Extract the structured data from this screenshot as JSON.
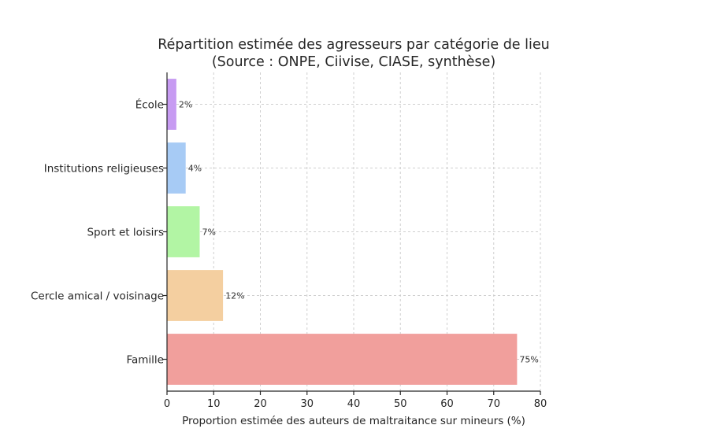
{
  "chart_data": {
    "type": "bar",
    "orientation": "horizontal",
    "title": "Répartition estimée des agresseurs par catégorie de lieu",
    "subtitle": "(Source : ONPE, Ciivise, CIASE, synthèse)",
    "xlabel": "Proportion estimée des auteurs de maltraitance sur mineurs (%)",
    "ylabel": "",
    "xlim": [
      0,
      80
    ],
    "xticks": [
      0,
      10,
      20,
      30,
      40,
      50,
      60,
      70,
      80
    ],
    "grid": true,
    "categories": [
      "École",
      "Institutions religieuses",
      "Sport et loisirs",
      "Cercle amical / voisinage",
      "Famille"
    ],
    "values": [
      2,
      4,
      7,
      12,
      75
    ],
    "data_labels": [
      "2%",
      "4%",
      "7%",
      "12%",
      "75%"
    ],
    "colors": [
      "#c79bf2",
      "#a7cbf5",
      "#b2f5a4",
      "#f4cfa0",
      "#f19f9c"
    ]
  }
}
